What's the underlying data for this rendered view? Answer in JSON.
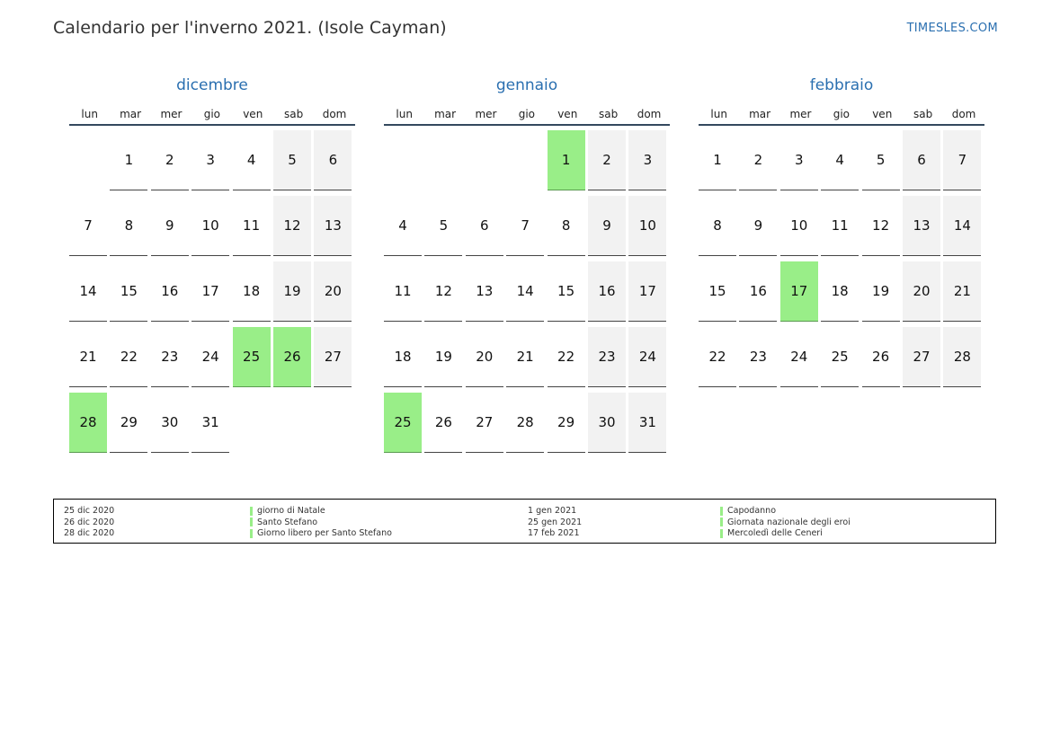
{
  "page": {
    "title": "Calendario per l'inverno 2021. (Isole Cayman)",
    "site": "TIMESLES.COM"
  },
  "weekdays": [
    "lun",
    "mar",
    "mer",
    "gio",
    "ven",
    "sab",
    "dom"
  ],
  "months": [
    {
      "name": "dicembre",
      "weeks": [
        [
          "",
          "1",
          "2",
          "3",
          "4",
          "5",
          "6"
        ],
        [
          "7",
          "8",
          "9",
          "10",
          "11",
          "12",
          "13"
        ],
        [
          "14",
          "15",
          "16",
          "17",
          "18",
          "19",
          "20"
        ],
        [
          "21",
          "22",
          "23",
          "24",
          "25",
          "26",
          "27"
        ],
        [
          "28",
          "29",
          "30",
          "31",
          "",
          "",
          ""
        ]
      ],
      "holidays": [
        "25",
        "26",
        "28"
      ]
    },
    {
      "name": "gennaio",
      "weeks": [
        [
          "",
          "",
          "",
          "",
          "1",
          "2",
          "3"
        ],
        [
          "4",
          "5",
          "6",
          "7",
          "8",
          "9",
          "10"
        ],
        [
          "11",
          "12",
          "13",
          "14",
          "15",
          "16",
          "17"
        ],
        [
          "18",
          "19",
          "20",
          "21",
          "22",
          "23",
          "24"
        ],
        [
          "25",
          "26",
          "27",
          "28",
          "29",
          "30",
          "31"
        ]
      ],
      "holidays": [
        "1",
        "25"
      ]
    },
    {
      "name": "febbraio",
      "weeks": [
        [
          "1",
          "2",
          "3",
          "4",
          "5",
          "6",
          "7"
        ],
        [
          "8",
          "9",
          "10",
          "11",
          "12",
          "13",
          "14"
        ],
        [
          "15",
          "16",
          "17",
          "18",
          "19",
          "20",
          "21"
        ],
        [
          "22",
          "23",
          "24",
          "25",
          "26",
          "27",
          "28"
        ]
      ],
      "holidays": [
        "17"
      ]
    }
  ],
  "legend": [
    {
      "date": "25 dic 2020",
      "name": "giorno di Natale"
    },
    {
      "date": "26 dic 2020",
      "name": "Santo Stefano"
    },
    {
      "date": "28 dic 2020",
      "name": "Giorno libero per Santo Stefano"
    },
    {
      "date": "1 gen 2021",
      "name": "Capodanno"
    },
    {
      "date": "25 gen 2021",
      "name": "Giornata nazionale degli eroi"
    },
    {
      "date": "17 feb 2021",
      "name": "Mercoledì delle Ceneri"
    }
  ],
  "colors": {
    "holiday": "#99ee88",
    "weekend": "#f2f2f2",
    "accent": "#2a6fb0"
  }
}
